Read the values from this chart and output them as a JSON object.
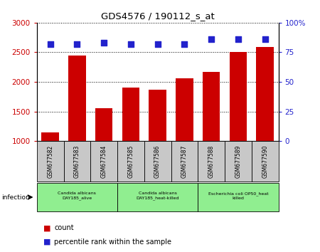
{
  "title": "GDS4576 / 190112_s_at",
  "samples": [
    "GSM677582",
    "GSM677583",
    "GSM677584",
    "GSM677585",
    "GSM677586",
    "GSM677587",
    "GSM677588",
    "GSM677589",
    "GSM677590"
  ],
  "counts": [
    1150,
    2450,
    1560,
    1900,
    1870,
    2060,
    2170,
    2510,
    2590
  ],
  "percentile_ranks": [
    82,
    82,
    83,
    82,
    82,
    82,
    86,
    86,
    86
  ],
  "ylim_left": [
    1000,
    3000
  ],
  "ylim_right": [
    0,
    100
  ],
  "yticks_left": [
    1000,
    1500,
    2000,
    2500,
    3000
  ],
  "yticks_right": [
    0,
    25,
    50,
    75,
    100
  ],
  "groups": [
    {
      "label": "Candida albicans\nDAY185_alive",
      "start": 0,
      "end": 3
    },
    {
      "label": "Candida albicans\nDAY185_heat-killed",
      "start": 3,
      "end": 6
    },
    {
      "label": "Escherichia coli OP50_heat\nkilled",
      "start": 6,
      "end": 9
    }
  ],
  "infection_label": "infection",
  "bar_color": "#cc0000",
  "dot_color": "#2222cc",
  "tick_color_left": "#cc0000",
  "tick_color_right": "#2222cc",
  "legend_count_label": "count",
  "legend_pct_label": "percentile rank within the sample",
  "background_xtick": "#c8c8c8",
  "group_color": "#90ee90"
}
